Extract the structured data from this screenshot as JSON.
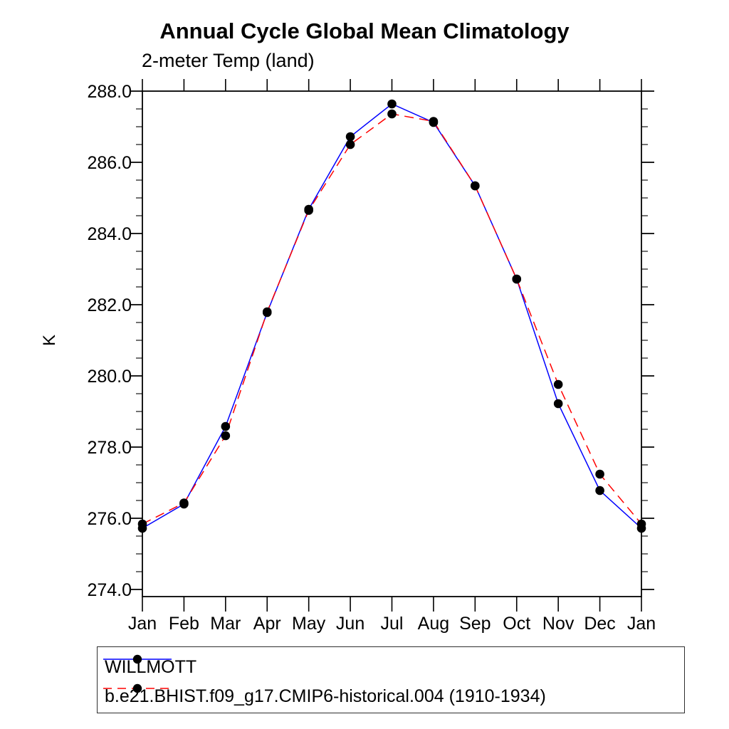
{
  "chart_data": {
    "type": "line",
    "title": "Annual Cycle Global Mean Climatology",
    "subtitle": "2-meter Temp (land)",
    "ylabel": "K",
    "categories": [
      "Jan",
      "Feb",
      "Mar",
      "Apr",
      "May",
      "Jun",
      "Jul",
      "Aug",
      "Sep",
      "Oct",
      "Nov",
      "Dec",
      "Jan"
    ],
    "ylim": [
      273.8,
      288.0
    ],
    "ytick_major": [
      274.0,
      276.0,
      278.0,
      280.0,
      282.0,
      284.0,
      286.0,
      288.0
    ],
    "ytick_minor_step": 0.5,
    "grid": "off",
    "legend_position": "bottom-left",
    "marker_color": "#000000",
    "series": [
      {
        "name": "WILLMOTT",
        "color": "#0000ff",
        "style": "solid",
        "values": [
          275.72,
          276.4,
          278.58,
          281.78,
          284.68,
          286.72,
          287.64,
          287.12,
          285.34,
          282.72,
          279.22,
          276.78,
          275.72
        ]
      },
      {
        "name": "b.e21.BHIST.f09_g17.CMIP6-historical.004 (1910-1934)",
        "color": "#ff0000",
        "style": "dashed",
        "values": [
          275.84,
          276.43,
          278.32,
          281.8,
          284.65,
          286.5,
          287.36,
          287.15,
          285.34,
          282.72,
          279.76,
          277.24,
          275.84
        ]
      }
    ]
  }
}
